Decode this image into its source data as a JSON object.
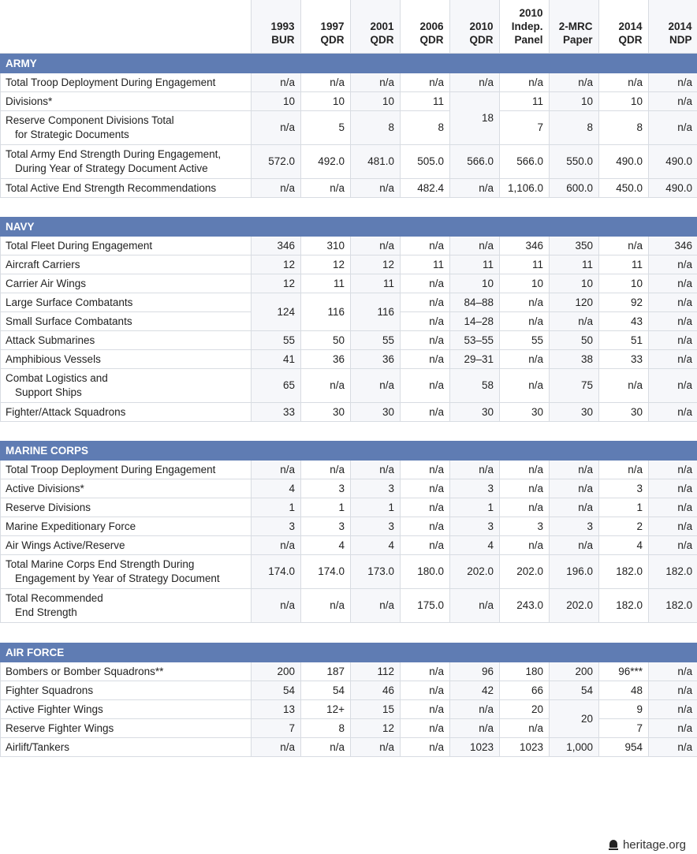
{
  "columns": [
    [
      "1993",
      "BUR"
    ],
    [
      "1997",
      "QDR"
    ],
    [
      "2001",
      "QDR"
    ],
    [
      "2006",
      "QDR"
    ],
    [
      "2010",
      "QDR"
    ],
    [
      "2010",
      "Indep.",
      "Panel"
    ],
    [
      "2-MRC",
      "Paper"
    ],
    [
      "2014",
      "QDR"
    ],
    [
      "2014",
      "NDP"
    ]
  ],
  "sections": [
    {
      "id": "army",
      "title": "ARMY",
      "rows": [
        {
          "label": [
            "Total Troop Deployment During Engagement"
          ],
          "values": [
            "n/a",
            "n/a",
            "n/a",
            "n/a",
            "n/a",
            "n/a",
            "n/a",
            "n/a",
            "n/a"
          ]
        },
        {
          "label": [
            "Divisions*"
          ],
          "values": [
            "10",
            "10",
            "10",
            "11",
            {
              "v": "18",
              "rowspan": 2
            },
            "11",
            "10",
            "10",
            "n/a"
          ]
        },
        {
          "label": [
            "Reserve Component Divisions Total",
            "for Strategic Documents"
          ],
          "values": [
            "n/a",
            "5",
            "8",
            "8",
            null,
            "7",
            "8",
            "8",
            "n/a"
          ]
        },
        {
          "label": [
            "Total Army End Strength During Engagement,",
            "During Year of Strategy Document Active"
          ],
          "values": [
            "572.0",
            "492.0",
            "481.0",
            "505.0",
            "566.0",
            "566.0",
            "550.0",
            "490.0",
            "490.0"
          ]
        },
        {
          "label": [
            "Total Active End Strength Recommendations"
          ],
          "values": [
            "n/a",
            "n/a",
            "n/a",
            "482.4",
            "n/a",
            "1,106.0",
            "600.0",
            "450.0",
            "490.0"
          ]
        }
      ]
    },
    {
      "id": "navy",
      "title": "NAVY",
      "rows": [
        {
          "label": [
            "Total Fleet During Engagement"
          ],
          "values": [
            "346",
            "310",
            "n/a",
            "n/a",
            "n/a",
            "346",
            "350",
            "n/a",
            "346"
          ]
        },
        {
          "label": [
            "Aircraft Carriers"
          ],
          "values": [
            "12",
            "12",
            "12",
            "11",
            "11",
            "11",
            "11",
            "11",
            "n/a"
          ]
        },
        {
          "label": [
            "Carrier Air Wings"
          ],
          "values": [
            "12",
            "11",
            "11",
            "n/a",
            "10",
            "10",
            "10",
            "10",
            "n/a"
          ]
        },
        {
          "label": [
            "Large Surface Combatants"
          ],
          "values": [
            {
              "v": "124",
              "rowspan": 2
            },
            {
              "v": "116",
              "rowspan": 2
            },
            {
              "v": "116",
              "rowspan": 2
            },
            "n/a",
            "84–88",
            "n/a",
            "120",
            "92",
            "n/a"
          ]
        },
        {
          "label": [
            "Small Surface Combatants"
          ],
          "values": [
            null,
            null,
            null,
            "n/a",
            "14–28",
            "n/a",
            "n/a",
            "43",
            "n/a"
          ]
        },
        {
          "label": [
            "Attack Submarines"
          ],
          "values": [
            "55",
            "50",
            "55",
            "n/a",
            "53–55",
            "55",
            "50",
            "51",
            "n/a"
          ]
        },
        {
          "label": [
            "Amphibious Vessels"
          ],
          "values": [
            "41",
            "36",
            "36",
            "n/a",
            "29–31",
            "n/a",
            "38",
            "33",
            "n/a"
          ]
        },
        {
          "label": [
            "Combat Logistics and",
            "Support Ships"
          ],
          "values": [
            "65",
            "n/a",
            "n/a",
            "n/a",
            "58",
            "n/a",
            "75",
            "n/a",
            "n/a"
          ]
        },
        {
          "label": [
            "Fighter/Attack Squadrons"
          ],
          "values": [
            "33",
            "30",
            "30",
            "n/a",
            "30",
            "30",
            "30",
            "30",
            "n/a"
          ]
        }
      ]
    },
    {
      "id": "marine",
      "title": "MARINE CORPS",
      "rows": [
        {
          "label": [
            "Total Troop Deployment During Engagement"
          ],
          "values": [
            "n/a",
            "n/a",
            "n/a",
            "n/a",
            "n/a",
            "n/a",
            "n/a",
            "n/a",
            "n/a"
          ]
        },
        {
          "label": [
            "Active Divisions*"
          ],
          "values": [
            "4",
            "3",
            "3",
            "n/a",
            "3",
            "n/a",
            "n/a",
            "3",
            "n/a"
          ]
        },
        {
          "label": [
            "Reserve Divisions"
          ],
          "values": [
            "1",
            "1",
            "1",
            "n/a",
            "1",
            "n/a",
            "n/a",
            "1",
            "n/a"
          ]
        },
        {
          "label": [
            "Marine Expeditionary Force"
          ],
          "values": [
            "3",
            "3",
            "3",
            "n/a",
            "3",
            "3",
            "3",
            "2",
            "n/a"
          ]
        },
        {
          "label": [
            "Air Wings Active/Reserve"
          ],
          "values": [
            "n/a",
            "4",
            "4",
            "n/a",
            "4",
            "n/a",
            "n/a",
            "4",
            "n/a"
          ]
        },
        {
          "label": [
            "Total Marine Corps End Strength During",
            "Engagement by Year of Strategy Document"
          ],
          "values": [
            "174.0",
            "174.0",
            "173.0",
            "180.0",
            "202.0",
            "202.0",
            "196.0",
            "182.0",
            "182.0"
          ]
        },
        {
          "label": [
            "Total Recommended",
            "End Strength"
          ],
          "values": [
            "n/a",
            "n/a",
            "n/a",
            "175.0",
            "n/a",
            "243.0",
            "202.0",
            "182.0",
            "182.0"
          ]
        }
      ]
    },
    {
      "id": "air",
      "title": "AIR FORCE",
      "rows": [
        {
          "label": [
            "Bombers or Bomber Squadrons**"
          ],
          "values": [
            "200",
            "187",
            "112",
            "n/a",
            "96",
            "180",
            "200",
            "96***",
            "n/a"
          ]
        },
        {
          "label": [
            "Fighter Squadrons"
          ],
          "values": [
            "54",
            "54",
            "46",
            "n/a",
            "42",
            "66",
            "54",
            "48",
            "n/a"
          ]
        },
        {
          "label": [
            "Active Fighter Wings"
          ],
          "values": [
            "13",
            "12+",
            "15",
            "n/a",
            "n/a",
            "20",
            {
              "v": "20",
              "rowspan": 2
            },
            "9",
            "n/a"
          ]
        },
        {
          "label": [
            "Reserve Fighter Wings"
          ],
          "values": [
            "7",
            "8",
            "12",
            "n/a",
            "n/a",
            "n/a",
            null,
            "7",
            "n/a"
          ]
        },
        {
          "label": [
            "Airlift/Tankers"
          ],
          "values": [
            "n/a",
            "n/a",
            "n/a",
            "n/a",
            "1023",
            "1023",
            "1,000",
            "954",
            "n/a"
          ]
        }
      ]
    }
  ],
  "footer": {
    "source": "heritage.org",
    "logo_icon": "liberty-bell-icon"
  },
  "colors": {
    "section_header": "#5f7cb3",
    "grid": "#d8dce2",
    "shaded_column": "#f6f7fa"
  }
}
